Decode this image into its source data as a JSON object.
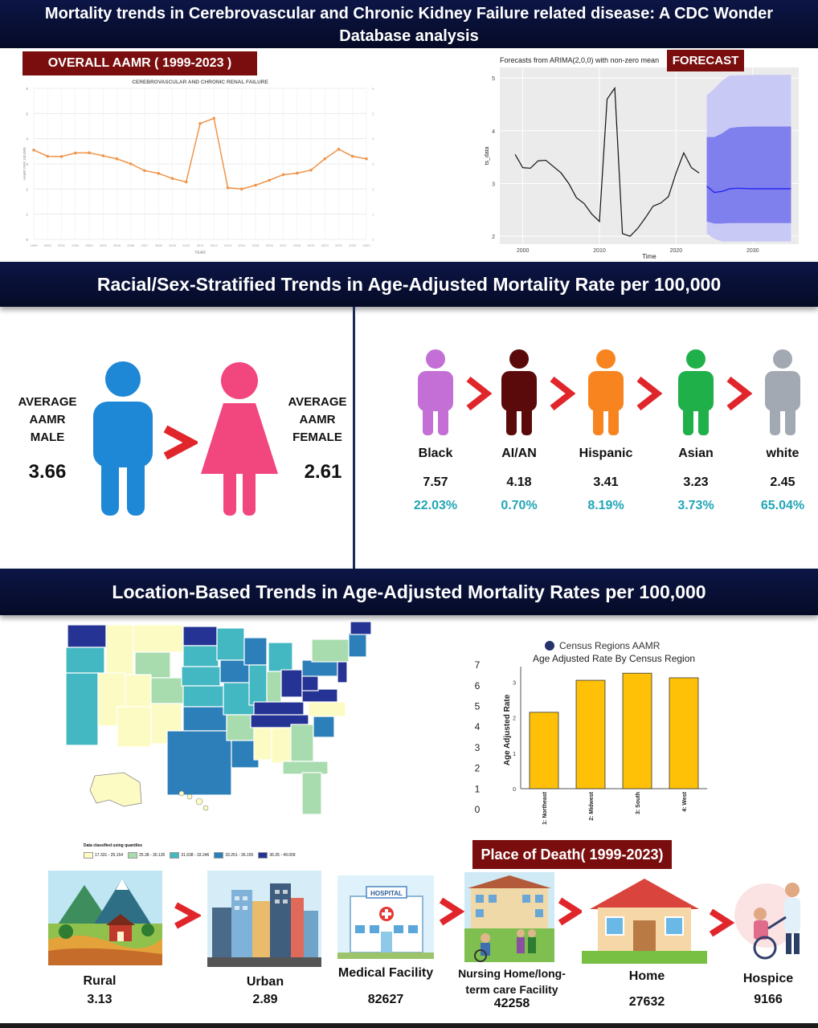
{
  "header": {
    "title": "Mortality trends in Cerebrovascular and Chronic Kidney Failure related disease: A CDC Wonder Database analysis"
  },
  "overall": {
    "tag": "OVERALL AAMR ( 1999-2023 )"
  },
  "forecast": {
    "tag": "FORECAST"
  },
  "sections": {
    "racial_sex_title": "Racial/Sex-Stratified Trends in Age-Adjusted Mortality Rate per 100,000",
    "location_title": "Location-Based Trends in Age-Adjusted Mortality Rates per 100,000"
  },
  "sex": {
    "male_label": "AVERAGE AAMR MALE",
    "male_value": "3.66",
    "female_label": "AVERAGE AAMR FEMALE",
    "female_value": "2.61",
    "male_color": "#1e88d6",
    "female_color": "#f2467e"
  },
  "race": [
    {
      "name": "Black",
      "value": "7.57",
      "pct": "22.03%",
      "color": "#c36fd6"
    },
    {
      "name": "AI/AN",
      "value": "4.18",
      "pct": "0.70%",
      "color": "#5a0a0a"
    },
    {
      "name": "Hispanic",
      "value": "3.41",
      "pct": "8.19%",
      "color": "#f7841f"
    },
    {
      "name": "Asian",
      "value": "3.23",
      "pct": "3.73%",
      "color": "#1fb04a"
    },
    {
      "name": "white",
      "value": "2.45",
      "pct": "65.04%",
      "color": "#a3a9b3"
    }
  ],
  "map": {
    "legend_title": "Data classified using quantiles",
    "legend": [
      {
        "label": "17.331 - 25.154",
        "color": "#fdfbc4"
      },
      {
        "label": "25.38 - 30.135",
        "color": "#a8dcae"
      },
      {
        "label": "31.638 - 33.246",
        "color": "#43b7c2"
      },
      {
        "label": "33.251 - 36.155",
        "color": "#2c7fb8"
      },
      {
        "label": "36.35 - 49.009",
        "color": "#253494"
      }
    ]
  },
  "urbanization": [
    {
      "name": "Rural",
      "value": "3.13"
    },
    {
      "name": "Urban",
      "value": "2.89"
    }
  ],
  "place_of_death": {
    "tag": "Place of Death( 1999-2023)",
    "hospital_sign": "HOSPITAL",
    "items": [
      {
        "name": "Medical Facility",
        "value": "82627"
      },
      {
        "name": "Nursing Home/long-term care Facility",
        "value": "42258"
      },
      {
        "name": "Home",
        "value": "27632"
      },
      {
        "name": "Hospice",
        "value": "9166"
      }
    ]
  },
  "chart_data": [
    {
      "type": "line",
      "title": "CEREBROVASCULAR AND CHRONIC RENAL FAILURE",
      "xlabel": "YEAR",
      "ylabel": "AAMR PER 100,000",
      "x": [
        1999,
        2000,
        2001,
        2002,
        2003,
        2004,
        2005,
        2006,
        2007,
        2008,
        2009,
        2010,
        2011,
        2012,
        2013,
        2014,
        2015,
        2016,
        2017,
        2018,
        2019,
        2020,
        2021,
        2022,
        2023
      ],
      "y": [
        3.55,
        3.3,
        3.29,
        3.43,
        3.44,
        3.32,
        3.2,
        3.0,
        2.73,
        2.62,
        2.42,
        2.28,
        4.6,
        4.81,
        2.05,
        2.0,
        2.15,
        2.35,
        2.57,
        2.63,
        2.75,
        3.2,
        3.58,
        3.3,
        3.2
      ],
      "ylim": [
        0,
        6
      ],
      "yticks": [
        0,
        1,
        2,
        3,
        4,
        5,
        6
      ],
      "line_color": "#f0944a",
      "grid": true
    },
    {
      "type": "line",
      "title": "Forecasts from ARIMA(2,0,0) with non-zero mean",
      "xlabel": "Time",
      "ylabel": "ts_data",
      "x": [
        1999,
        2000,
        2001,
        2002,
        2003,
        2004,
        2005,
        2006,
        2007,
        2008,
        2009,
        2010,
        2011,
        2012,
        2013,
        2014,
        2015,
        2016,
        2017,
        2018,
        2019,
        2020,
        2021,
        2022,
        2023
      ],
      "y": [
        3.55,
        3.3,
        3.29,
        3.43,
        3.44,
        3.32,
        3.2,
        3.0,
        2.73,
        2.62,
        2.42,
        2.28,
        4.6,
        4.81,
        2.05,
        2.0,
        2.15,
        2.35,
        2.57,
        2.63,
        2.75,
        3.2,
        3.58,
        3.3,
        3.2
      ],
      "forecast_x": [
        2024,
        2025,
        2026,
        2027,
        2028,
        2030,
        2035
      ],
      "forecast_mean": [
        2.95,
        2.83,
        2.85,
        2.9,
        2.91,
        2.9,
        2.9
      ],
      "lo80": [
        2.28,
        2.24,
        2.24,
        2.25,
        2.25,
        2.25,
        2.25
      ],
      "hi80": [
        3.88,
        3.88,
        3.95,
        4.05,
        4.07,
        4.08,
        4.08
      ],
      "lo95": [
        2.05,
        1.95,
        1.9,
        1.9,
        1.9,
        1.9,
        1.9
      ],
      "hi95": [
        4.67,
        4.8,
        4.95,
        5.05,
        5.05,
        5.06,
        5.06
      ],
      "xlim": [
        1997,
        2036
      ],
      "ylim": [
        1.85,
        5.2
      ],
      "xticks": [
        2000,
        2010,
        2020,
        2030
      ],
      "yticks": [
        2,
        3,
        4,
        5
      ],
      "band95_color": "#c9c9f5",
      "band80_color": "#7f7fee",
      "mean_color": "#2222ee"
    },
    {
      "type": "bar",
      "legend": "Census Regions AAMR",
      "title": "Age Adjusted Rate By Census Region",
      "ylabel": "Age Adjusted Rate",
      "categories": [
        "Census Region 1: Northeast",
        "Census Region 2: Midwest",
        "Census Region 3: South",
        "Census Region 4: West"
      ],
      "values": [
        2.15,
        3.05,
        3.25,
        3.12
      ],
      "ylim": [
        0,
        3.3
      ],
      "yticks": [
        0,
        1,
        2,
        3
      ],
      "outer_ticks": [
        0,
        1,
        2,
        3,
        4,
        5,
        6,
        7
      ],
      "bar_color": "#ffc107"
    }
  ]
}
